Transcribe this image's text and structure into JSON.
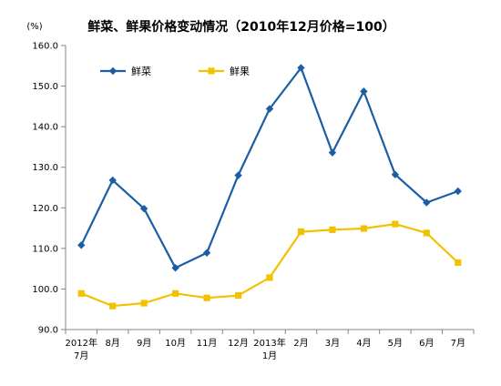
{
  "chart_data": {
    "type": "line",
    "title": "鲜菜、鲜果价格变动情况（2010年12月价格=100）",
    "unit": "(%)",
    "categories": [
      [
        "2012年",
        "7月"
      ],
      [
        "8月"
      ],
      [
        "9月"
      ],
      [
        "10月"
      ],
      [
        "11月"
      ],
      [
        "12月"
      ],
      [
        "2013年",
        "1月"
      ],
      [
        "2月"
      ],
      [
        "3月"
      ],
      [
        "4月"
      ],
      [
        "5月"
      ],
      [
        "6月"
      ],
      [
        "7月"
      ]
    ],
    "yticks": [
      "90.0",
      "100.0",
      "110.0",
      "120.0",
      "130.0",
      "140.0",
      "150.0",
      "160.0"
    ],
    "ylim": [
      90,
      160
    ],
    "legend_position": "top-left",
    "series": [
      {
        "name": "鲜菜",
        "color": "#1B5EA6",
        "marker": "diamond",
        "values": [
          110.8,
          126.8,
          119.8,
          105.2,
          108.9,
          128.0,
          144.4,
          154.5,
          133.6,
          148.7,
          128.2,
          121.3,
          124.1
        ]
      },
      {
        "name": "鲜果",
        "color": "#F2C200",
        "marker": "square",
        "values": [
          98.9,
          95.8,
          96.5,
          98.9,
          97.8,
          98.4,
          102.8,
          114.1,
          114.6,
          114.9,
          116.0,
          113.8,
          106.5
        ]
      }
    ],
    "grid": false
  }
}
